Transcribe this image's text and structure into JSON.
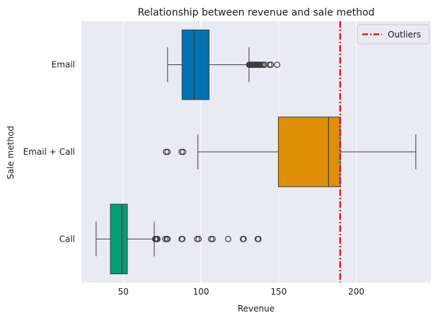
{
  "chart_data": {
    "type": "boxplot",
    "orientation": "horizontal",
    "title": "Relationship between revenue and sale method",
    "xlabel": "Revenue",
    "ylabel": "Sale method",
    "xlim": [
      23,
      248
    ],
    "xticks": [
      50,
      100,
      150,
      200
    ],
    "grid": "x",
    "background": "#eaeaf2",
    "categories": [
      "Email",
      "Email + Call",
      "Call"
    ],
    "boxes": [
      {
        "category": "Email",
        "color": "#0173b2",
        "whisker_low": 78.5,
        "q1": 87.8,
        "median": 95.6,
        "q3": 105.2,
        "whisker_high": 130.9,
        "outliers": [
          131,
          131.5,
          132,
          132.5,
          133,
          133.5,
          134,
          134.5,
          135,
          135.5,
          136,
          136.5,
          137,
          137.5,
          138,
          139,
          140,
          141,
          144,
          145,
          149
        ]
      },
      {
        "category": "Email + Call",
        "color": "#de8f05",
        "whisker_low": 98.0,
        "q1": 149.8,
        "median": 182.1,
        "q3": 189.6,
        "whisker_high": 238.3,
        "outliers": [
          77.5,
          78.5,
          87.5,
          88.5
        ]
      },
      {
        "category": "Call",
        "color": "#029e73",
        "whisker_low": 32.5,
        "q1": 41.7,
        "median": 49.1,
        "q3": 52.6,
        "whisker_high": 69.9,
        "outliers": [
          70.5,
          71,
          71.5,
          72,
          77,
          78,
          78.5,
          87.5,
          88,
          97.5,
          98.5,
          106.5,
          107.5,
          117.5,
          127,
          127.5,
          136.5,
          137
        ]
      }
    ],
    "reference_line": {
      "x": 189.6,
      "label": "Outliers",
      "color": "#e0191f",
      "style": "dashdot"
    },
    "legend": {
      "position": "top-right",
      "entries": [
        "Outliers"
      ]
    }
  }
}
